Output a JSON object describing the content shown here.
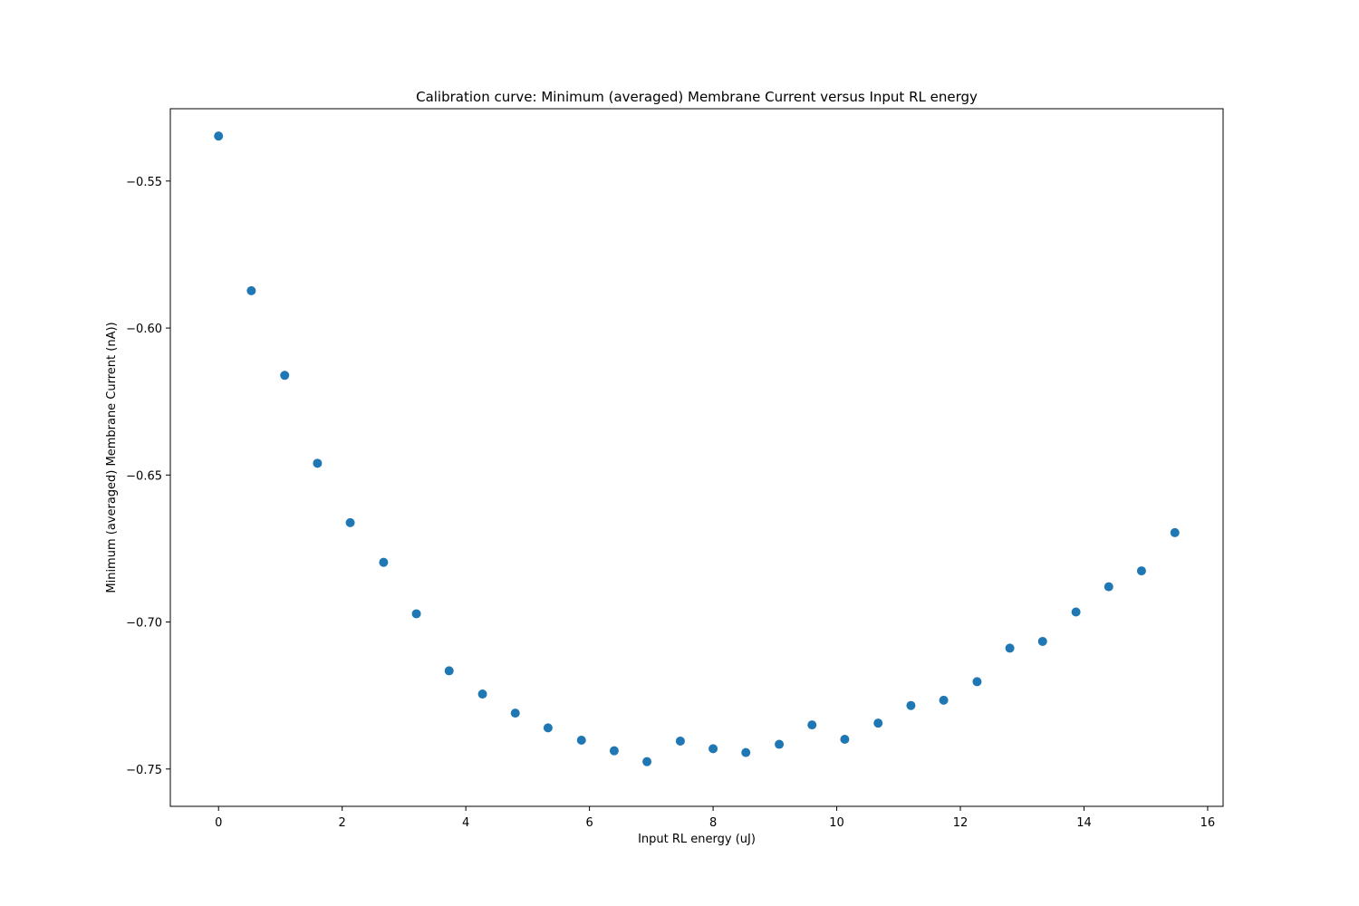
{
  "chart_data": {
    "type": "scatter",
    "title": "Calibration curve: Minimum (averaged) Membrane Current versus Input RL energy",
    "xlabel": "Input RL energy (uJ)",
    "ylabel": "Minimum (averaged) Membrane Current (nA))",
    "xlim": [
      -0.78,
      16.25
    ],
    "ylim": [
      -0.7627,
      -0.5254
    ],
    "xticks": [
      0,
      2,
      4,
      6,
      8,
      10,
      12,
      14,
      16
    ],
    "xtick_labels": [
      "0",
      "2",
      "4",
      "6",
      "8",
      "10",
      "12",
      "14",
      "16"
    ],
    "yticks": [
      -0.55,
      -0.6,
      -0.65,
      -0.7,
      -0.75
    ],
    "ytick_labels": [
      "−0.55",
      "−0.60",
      "−0.65",
      "−0.70",
      "−0.75"
    ],
    "grid": false,
    "marker_color": "#1f77b4",
    "series": [
      {
        "x": [
          0.0,
          0.53,
          1.07,
          1.6,
          2.13,
          2.67,
          3.2,
          3.73,
          4.27,
          4.8,
          5.33,
          5.87,
          6.4,
          6.93,
          7.47,
          8.0,
          8.53,
          9.07,
          9.6,
          10.13,
          10.67,
          11.2,
          11.73,
          12.27,
          12.8,
          13.33,
          13.87,
          14.4,
          14.93,
          15.47
        ],
        "y": [
          -0.5347,
          -0.5873,
          -0.6161,
          -0.646,
          -0.6662,
          -0.6797,
          -0.6972,
          -0.7166,
          -0.7245,
          -0.731,
          -0.736,
          -0.7402,
          -0.7438,
          -0.7475,
          -0.7405,
          -0.7431,
          -0.7444,
          -0.7416,
          -0.735,
          -0.7399,
          -0.7344,
          -0.7284,
          -0.7266,
          -0.7203,
          -0.7089,
          -0.7066,
          -0.6966,
          -0.688,
          -0.6826,
          -0.6696
        ]
      }
    ]
  }
}
